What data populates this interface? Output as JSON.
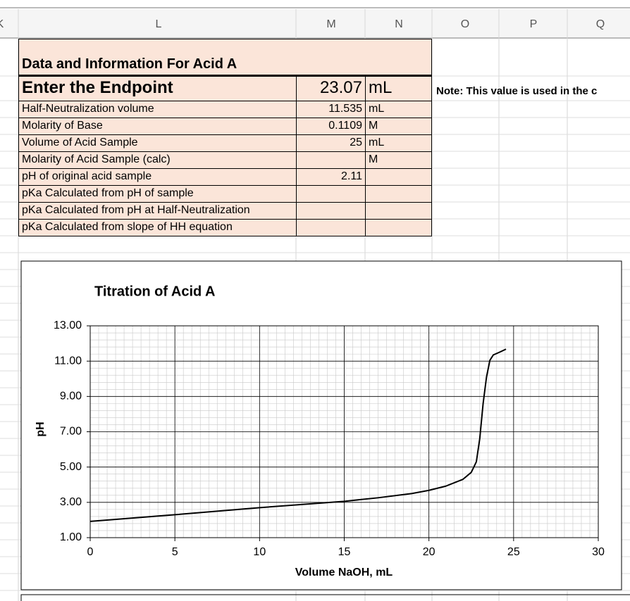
{
  "columns": [
    "K",
    "L",
    "M",
    "N",
    "O",
    "P",
    "Q"
  ],
  "table": {
    "title": "Data and Information For Acid A",
    "rows": [
      {
        "label": "Enter the Endpoint",
        "value": 23.07,
        "unit": "mL"
      },
      {
        "label": "Half-Neutralization volume",
        "value": 11.535,
        "unit": "mL"
      },
      {
        "label": "Molarity of Base",
        "value": 0.1109,
        "unit": "M"
      },
      {
        "label": "Volume of Acid Sample",
        "value": 25,
        "unit": "mL"
      },
      {
        "label": "Molarity of Acid Sample (calc)",
        "unit": "M"
      },
      {
        "label": "pH of original acid sample",
        "value": 2.11
      },
      {
        "label": "pKa Calculated from pH of sample"
      },
      {
        "label": "pKa Calculated from pH at Half-Neutralization"
      },
      {
        "label": "pKa Calculated from slope of HH equation"
      }
    ]
  },
  "note": "Note: This value is used in the c",
  "chart_data": {
    "type": "line",
    "title": "Titration of Acid A",
    "x_label": "Volume NaOH, mL",
    "y_label": "pH",
    "x": [
      0,
      5,
      10,
      15,
      17,
      19,
      20,
      21,
      22,
      22.5,
      22.8,
      23.0,
      23.2,
      23.4,
      23.6,
      23.8,
      24.2,
      24.55
    ],
    "values": [
      1.92,
      2.3,
      2.7,
      3.06,
      3.26,
      3.5,
      3.68,
      3.92,
      4.3,
      4.7,
      5.3,
      6.6,
      8.6,
      10.1,
      11.05,
      11.35,
      11.52,
      11.68
    ],
    "color": "#000000",
    "xlim": [
      0,
      30
    ],
    "xticks": [
      0,
      5,
      10,
      15,
      20,
      25,
      30
    ],
    "ylim": [
      1,
      13
    ],
    "yticks": [
      {
        "value": 1,
        "label": "1.00"
      },
      {
        "value": 3,
        "label": "3.00"
      },
      {
        "value": 5,
        "label": "5.00"
      },
      {
        "value": 7,
        "label": "7.00"
      },
      {
        "value": 9,
        "label": "9.00"
      },
      {
        "value": 11,
        "label": "11.00"
      },
      {
        "value": 13,
        "label": "13.00"
      }
    ],
    "grid": true
  }
}
